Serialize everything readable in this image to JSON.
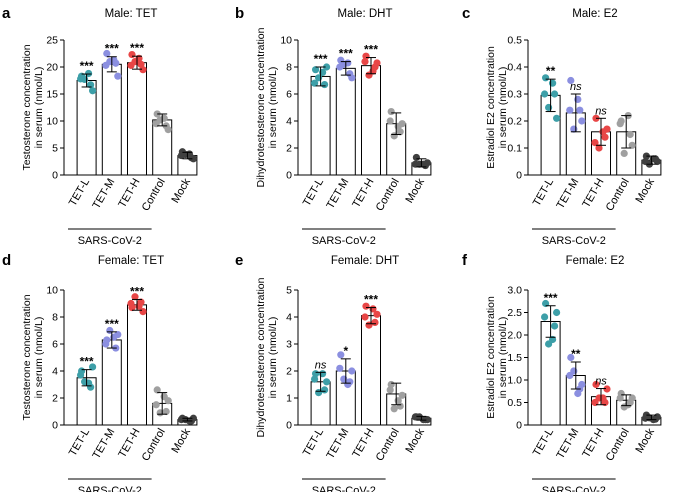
{
  "figure": {
    "group_label": "SARS-CoV-2",
    "colors": {
      "TET-L": "#3d9fa8",
      "TET-M": "#8b8fe0",
      "TET-H": "#e84646",
      "Control": "#a0a0a0",
      "Mock": "#404040"
    }
  },
  "chart_data": [
    {
      "panel": "a",
      "type": "bar",
      "title": "Male: TET",
      "ylabel": "Testosterone concentration\nin serum (nmol/L)",
      "ylim": [
        0,
        25
      ],
      "yticks": [
        "0",
        "5",
        "10",
        "15",
        "20",
        "25"
      ],
      "categories": [
        "TET-L",
        "TET-M",
        "TET-H",
        "Control",
        "Mock"
      ],
      "values": [
        17.5,
        20.5,
        20.8,
        10.2,
        3.6
      ],
      "errors": [
        1.2,
        1.4,
        1.2,
        1.1,
        0.6
      ],
      "significance": [
        "***",
        "***",
        "***",
        "",
        ""
      ],
      "points": [
        [
          18.3,
          16.7,
          17.7,
          15.6,
          17.8,
          18.8
        ],
        [
          22.5,
          20.7,
          21.0,
          18.3,
          20.3,
          21.3
        ],
        [
          22.3,
          20.5,
          21.0,
          19.5,
          20.3,
          21.6
        ],
        [
          11.3,
          9.1,
          10.2,
          8.4,
          9.5,
          10.5
        ],
        [
          4.3,
          3.2,
          3.8,
          3.0,
          3.6,
          3.9
        ]
      ]
    },
    {
      "panel": "b",
      "type": "bar",
      "title": "Male: DHT",
      "ylabel": "Dihydrotestosterone concentration\nin serum (nmol/L)",
      "ylim": [
        0,
        10
      ],
      "yticks": [
        "0",
        "2",
        "4",
        "6",
        "8",
        "10"
      ],
      "categories": [
        "TET-L",
        "TET-M",
        "TET-H",
        "Control",
        "Mock"
      ],
      "values": [
        7.3,
        7.9,
        8.1,
        3.8,
        0.9
      ],
      "errors": [
        0.7,
        0.5,
        0.6,
        0.8,
        0.3
      ],
      "significance": [
        "***",
        "***",
        "***",
        "",
        ""
      ],
      "points": [
        [
          7.8,
          6.7,
          7.2,
          8.0,
          6.8,
          7.6
        ],
        [
          8.5,
          7.5,
          8.2,
          7.2,
          8.0,
          8.3
        ],
        [
          8.8,
          8.0,
          7.4,
          8.3,
          8.4,
          7.7
        ],
        [
          4.7,
          3.2,
          2.9,
          3.8,
          4.0,
          3.6
        ],
        [
          1.3,
          0.7,
          0.8,
          0.9,
          0.8,
          0.8
        ]
      ]
    },
    {
      "panel": "c",
      "type": "bar",
      "title": "Male: E2",
      "ylabel": "Estradiol E2 concentration\nin serum (nmol/L)",
      "ylim": [
        0,
        0.5
      ],
      "yticks": [
        "0",
        "0.1",
        "0.2",
        "0.3",
        "0.4",
        "0.5"
      ],
      "categories": [
        "TET-L",
        "TET-M",
        "TET-H",
        "Control",
        "Mock"
      ],
      "values": [
        0.295,
        0.23,
        0.16,
        0.16,
        0.055
      ],
      "errors": [
        0.06,
        0.07,
        0.05,
        0.06,
        0.015
      ],
      "significance": [
        "**",
        "ns",
        "ns",
        "",
        ""
      ],
      "points": [
        [
          0.36,
          0.3,
          0.25,
          0.21,
          0.3,
          0.34
        ],
        [
          0.35,
          0.24,
          0.17,
          0.2,
          0.24,
          0.28
        ],
        [
          0.21,
          0.14,
          0.1,
          0.17,
          0.12,
          0.16
        ],
        [
          0.2,
          0.15,
          0.08,
          0.11,
          0.19,
          0.22
        ],
        [
          0.07,
          0.06,
          0.04,
          0.05,
          0.05,
          0.06
        ]
      ]
    },
    {
      "panel": "d",
      "type": "bar",
      "title": "Female: TET",
      "ylabel": "Testosterone concentration\nin serum (nmol/L)",
      "ylim": [
        0,
        10
      ],
      "yticks": [
        "0",
        "2",
        "4",
        "6",
        "8",
        "10"
      ],
      "categories": [
        "TET-L",
        "TET-M",
        "TET-H",
        "Control",
        "Mock"
      ],
      "values": [
        3.5,
        6.3,
        8.9,
        1.6,
        0.4
      ],
      "errors": [
        0.6,
        0.6,
        0.4,
        0.8,
        0.1
      ],
      "significance": [
        "***",
        "***",
        "***",
        "",
        ""
      ],
      "points": [
        [
          4.0,
          2.8,
          3.2,
          4.3,
          3.7,
          3.1
        ],
        [
          6.3,
          5.7,
          7.0,
          6.7,
          6.0,
          6.5
        ],
        [
          8.7,
          9.1,
          9.5,
          8.4,
          9.0,
          8.8
        ],
        [
          2.6,
          1.0,
          0.9,
          1.8,
          1.5,
          2.1
        ],
        [
          0.5,
          0.3,
          0.4,
          0.5,
          0.4,
          0.3
        ]
      ]
    },
    {
      "panel": "e",
      "type": "bar",
      "title": "Female: DHT",
      "ylabel": "Dihydrotestosterone concentration\nin serum (nmol/L)",
      "ylim": [
        0,
        5
      ],
      "yticks": [
        "0",
        "1",
        "2",
        "3",
        "4",
        "5"
      ],
      "categories": [
        "TET-L",
        "TET-M",
        "TET-H",
        "Control",
        "Mock"
      ],
      "values": [
        1.6,
        2.0,
        4.05,
        1.15,
        0.25
      ],
      "errors": [
        0.35,
        0.45,
        0.3,
        0.4,
        0.07
      ],
      "significance": [
        "ns",
        "*",
        "***",
        "",
        ""
      ],
      "points": [
        [
          1.9,
          1.3,
          1.2,
          1.6,
          1.7,
          1.9
        ],
        [
          2.6,
          1.6,
          1.7,
          2.0,
          2.1,
          1.5
        ],
        [
          4.4,
          3.8,
          3.7,
          4.1,
          4.0,
          4.3
        ],
        [
          1.5,
          0.7,
          0.6,
          1.1,
          1.3,
          0.9
        ],
        [
          0.3,
          0.2,
          0.3,
          0.2,
          0.3,
          0.2
        ]
      ]
    },
    {
      "panel": "f",
      "type": "bar",
      "title": "Female: E2",
      "ylabel": "Estradiol E2 concentration\nin serum (nmol/L)",
      "ylim": [
        0,
        3.0
      ],
      "yticks": [
        "0",
        "0.5",
        "1.0",
        "1.5",
        "2.0",
        "2.5",
        "3.0"
      ],
      "categories": [
        "TET-L",
        "TET-M",
        "TET-H",
        "Control",
        "Mock"
      ],
      "values": [
        2.3,
        1.1,
        0.63,
        0.55,
        0.17
      ],
      "errors": [
        0.35,
        0.3,
        0.18,
        0.12,
        0.05
      ],
      "significance": [
        "***",
        "**",
        "ns",
        "",
        ""
      ],
      "points": [
        [
          2.7,
          2.2,
          1.8,
          2.5,
          2.4,
          1.9
        ],
        [
          1.5,
          0.8,
          1.2,
          0.9,
          1.1,
          0.7
        ],
        [
          0.9,
          0.5,
          0.6,
          0.8,
          0.5,
          0.6
        ],
        [
          0.7,
          0.5,
          0.4,
          0.6,
          0.6,
          0.45
        ],
        [
          0.22,
          0.13,
          0.16,
          0.18,
          0.15,
          0.12
        ]
      ]
    }
  ]
}
